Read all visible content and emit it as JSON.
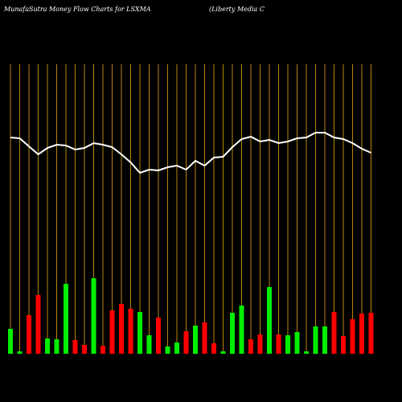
{
  "chart_data": {
    "type": "bar",
    "title": "MunafaSutra  Money Flow  Charts for LSXMA",
    "subtitle": "(Liberty Media  C",
    "categories": [
      null,
      null,
      null,
      null,
      null,
      null,
      null,
      null,
      null,
      null,
      null,
      null,
      null,
      null,
      null,
      null,
      null,
      null,
      null,
      null,
      null,
      null,
      null,
      null,
      null,
      null,
      null,
      null,
      null,
      null,
      null,
      null,
      null,
      null,
      null,
      null,
      null,
      null,
      null,
      null
    ],
    "series": [
      {
        "values": [
          31,
          3,
          48,
          73,
          19,
          18,
          87,
          17,
          11,
          94,
          10,
          54,
          62,
          56,
          52,
          23,
          45,
          9,
          14,
          28,
          35,
          39,
          13,
          3,
          51,
          60,
          18,
          24,
          83,
          24,
          23,
          27,
          3,
          34,
          34,
          52,
          22,
          43,
          50,
          51
        ],
        "colors": [
          "#00ee00",
          "#00ee00",
          "#ff0000",
          "#ff0000",
          "#00ee00",
          "#00ee00",
          "#00ee00",
          "#ff0000",
          "#ff0000",
          "#00ee00",
          "#ff0000",
          "#ff0000",
          "#ff0000",
          "#ff0000",
          "#00ee00",
          "#00ee00",
          "#ff0000",
          "#00ee00",
          "#00ee00",
          "#ff0000",
          "#00ee00",
          "#ff0000",
          "#ff0000",
          "#00ee00",
          "#00ee00",
          "#00ee00",
          "#ff0000",
          "#ff0000",
          "#00ee00",
          "#ff0000",
          "#00ee00",
          "#00ee00",
          "#00ee00",
          "#00ee00",
          "#00ee00",
          "#ff0000",
          "#ff0000",
          "#ff0000",
          "#ff0000",
          "#ff0000"
        ]
      },
      {
        "type": "line",
        "color": "#ffffff",
        "values": [
          269,
          268,
          258,
          248,
          256,
          260,
          259,
          254,
          256,
          262,
          260,
          257,
          248,
          238,
          225,
          229,
          228,
          232,
          234,
          229,
          240,
          234,
          244,
          245,
          257,
          267,
          270,
          264,
          266,
          262,
          264,
          268,
          269,
          275,
          275,
          269,
          267,
          262,
          255,
          250
        ]
      }
    ],
    "ylim": [
      0,
      360
    ],
    "grid_color": "#b8860b"
  }
}
